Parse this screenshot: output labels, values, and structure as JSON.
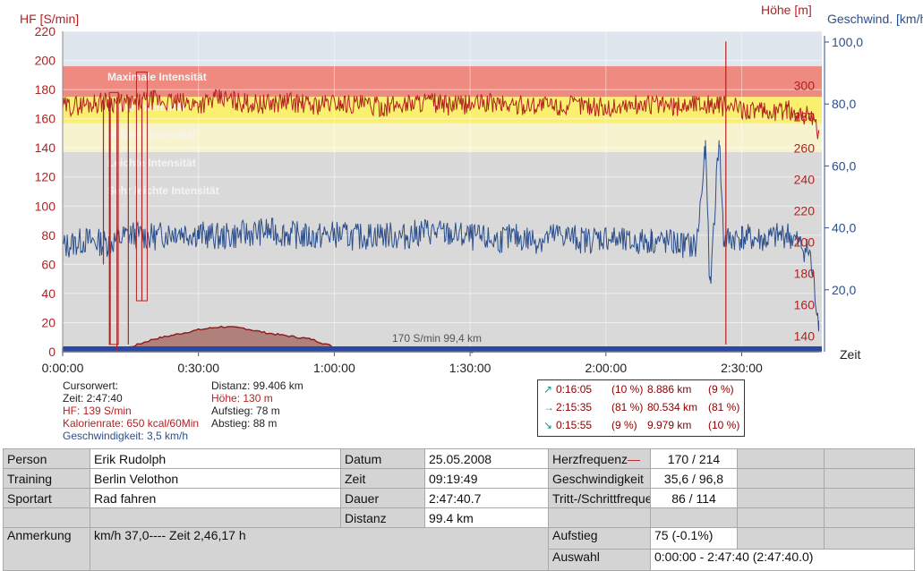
{
  "chart_data": {
    "type": "line",
    "x_ticks": [
      "0:00:00",
      "0:30:00",
      "1:00:00",
      "1:30:00",
      "2:00:00",
      "2:30:00"
    ],
    "xlabel": "Zeit",
    "y_left": {
      "label": "HF [S/min]",
      "min": 0,
      "max": 220,
      "ticks": [
        "0",
        "20",
        "40",
        "60",
        "80",
        "100",
        "120",
        "140",
        "160",
        "180",
        "200",
        "220"
      ],
      "color": "#b22222"
    },
    "y_altitude": {
      "label": "Höhe  [m]",
      "ticks": [
        "140",
        "160",
        "180",
        "200",
        "220",
        "240",
        "260",
        "280",
        "300"
      ],
      "color": "#b22222"
    },
    "y_speed": {
      "label": "Geschwind. [km/h]",
      "ticks": [
        "20,0",
        "40,0",
        "60,0",
        "80,0",
        "100,0"
      ],
      "color": "#2c4f8c"
    },
    "zones": [
      {
        "name": "Maximale Intensität",
        "from": 175,
        "to": 196,
        "color": "#ef8a80"
      },
      {
        "name": "Hohe Intensität",
        "from": 157,
        "to": 175,
        "color": "#faef6e"
      },
      {
        "name": "Mittlere Intensität",
        "from": 137,
        "to": 157,
        "color": "#f7f3cf"
      },
      {
        "name": "Leichte Intensität",
        "from": 118,
        "to": 137,
        "color": "#dadada"
      },
      {
        "name": "Sehr leichte Intensität",
        "from": 98,
        "to": 118,
        "color": "#dadada"
      }
    ],
    "series": [
      {
        "name": "Herzfrequenz",
        "unit": "S/min",
        "color": "#b22222",
        "points": [
          [
            0,
            168
          ],
          [
            5,
            170
          ],
          [
            10,
            172
          ],
          [
            15,
            170
          ],
          [
            20,
            173
          ],
          [
            25,
            171
          ],
          [
            30,
            170
          ],
          [
            35,
            174
          ],
          [
            40,
            171
          ],
          [
            45,
            170
          ],
          [
            50,
            172
          ],
          [
            55,
            169
          ],
          [
            60,
            171
          ],
          [
            65,
            170
          ],
          [
            70,
            168
          ],
          [
            75,
            170
          ],
          [
            80,
            172
          ],
          [
            85,
            169
          ],
          [
            90,
            170
          ],
          [
            95,
            171
          ],
          [
            100,
            169
          ],
          [
            105,
            170
          ],
          [
            110,
            168
          ],
          [
            115,
            170
          ],
          [
            120,
            167
          ],
          [
            125,
            169
          ],
          [
            130,
            170
          ],
          [
            135,
            168
          ],
          [
            140,
            171
          ],
          [
            145,
            169
          ],
          [
            150,
            167
          ],
          [
            155,
            164
          ],
          [
            160,
            166
          ],
          [
            165,
            162
          ],
          [
            167,
            150
          ]
        ]
      },
      {
        "name": "Geschwindigkeit",
        "unit": "km/h",
        "color": "#2c4f8c",
        "points": [
          [
            0,
            34
          ],
          [
            5,
            36
          ],
          [
            10,
            35
          ],
          [
            15,
            38
          ],
          [
            20,
            37
          ],
          [
            25,
            39
          ],
          [
            30,
            38
          ],
          [
            35,
            37
          ],
          [
            40,
            38
          ],
          [
            45,
            39
          ],
          [
            50,
            38
          ],
          [
            55,
            37
          ],
          [
            60,
            38
          ],
          [
            65,
            37
          ],
          [
            70,
            38
          ],
          [
            75,
            37
          ],
          [
            80,
            39
          ],
          [
            85,
            38
          ],
          [
            90,
            37
          ],
          [
            95,
            36
          ],
          [
            100,
            37
          ],
          [
            105,
            36
          ],
          [
            110,
            38
          ],
          [
            115,
            36
          ],
          [
            120,
            37
          ],
          [
            125,
            35
          ],
          [
            130,
            36
          ],
          [
            135,
            35
          ],
          [
            140,
            34
          ],
          [
            142,
            65
          ],
          [
            143,
            20
          ],
          [
            145,
            70
          ],
          [
            146,
            36
          ],
          [
            150,
            37
          ],
          [
            155,
            36
          ],
          [
            160,
            38
          ],
          [
            165,
            32
          ],
          [
            167,
            10
          ]
        ]
      },
      {
        "name": "Höhe",
        "unit": "m",
        "color": "#8b1a1a",
        "points": [
          [
            0,
            132
          ],
          [
            10,
            131
          ],
          [
            15,
            133
          ],
          [
            20,
            138
          ],
          [
            25,
            141
          ],
          [
            30,
            144
          ],
          [
            35,
            146
          ],
          [
            40,
            145
          ],
          [
            45,
            142
          ],
          [
            50,
            140
          ],
          [
            55,
            138
          ],
          [
            60,
            133
          ],
          [
            65,
            131
          ],
          [
            70,
            131
          ],
          [
            80,
            131
          ],
          [
            90,
            130
          ],
          [
            100,
            131
          ],
          [
            110,
            131
          ],
          [
            120,
            132
          ],
          [
            130,
            131
          ],
          [
            140,
            131
          ],
          [
            150,
            132
          ],
          [
            160,
            132
          ],
          [
            167,
            132
          ]
        ]
      }
    ],
    "annotation": "170 S/min 99,4 km"
  },
  "cursor": {
    "title": "Cursorwert:",
    "time": "Zeit: 2:47:40",
    "hr": "HF: 139 S/min",
    "calories": "Kalorienrate: 650 kcal/60Min",
    "speed": "Geschwindigkeit: 3,5 km/h",
    "distance": "Distanz: 99.406 km",
    "altitude": "Höhe:  130 m",
    "ascent": "Aufstieg: 78 m",
    "descent": "Abstieg: 88 m"
  },
  "zones_box": [
    {
      "arrow": "↗",
      "time": "0:16:05",
      "pct": "(10 %)",
      "km": "8.886 km",
      "kmpct": "(9 %)"
    },
    {
      "arrow": "→",
      "time": "2:15:35",
      "pct": "(81 %)",
      "km": "80.534 km",
      "kmpct": "(81 %)"
    },
    {
      "arrow": "↘",
      "time": "0:15:55",
      "pct": "(9 %)",
      "km": "9.979 km",
      "kmpct": "(10 %)"
    }
  ],
  "table": {
    "person_label": "Person",
    "person": "Erik Rudolph",
    "training_label": "Training",
    "training": "Berlin Velothon",
    "sport_label": "Sportart",
    "sport": "Rad fahren",
    "note_label": "Anmerkung",
    "note": "km/h 37,0---- Zeit 2,46,17 h",
    "date_label": "Datum",
    "date": "25.05.2008",
    "time_label": "Zeit",
    "time": "09:19:49",
    "duration_label": "Dauer",
    "duration": "2:47:40.7",
    "distance_label": "Distanz",
    "distance": "99.4 km",
    "hr_label": "Herzfrequenz",
    "hr_marker": "—",
    "hr": "170 / 214",
    "speed_label": "Geschwindigkeit",
    "speed": "35,6 / 96,8",
    "cadence_label": "Tritt-/Schrittfrequenz",
    "cadence": "86 / 114",
    "ascent_label": "Aufstieg",
    "ascent": "75 (-0.1%)",
    "selection_label": "Auswahl",
    "selection": "0:00:00 - 2:47:40 (2:47:40.0)"
  }
}
